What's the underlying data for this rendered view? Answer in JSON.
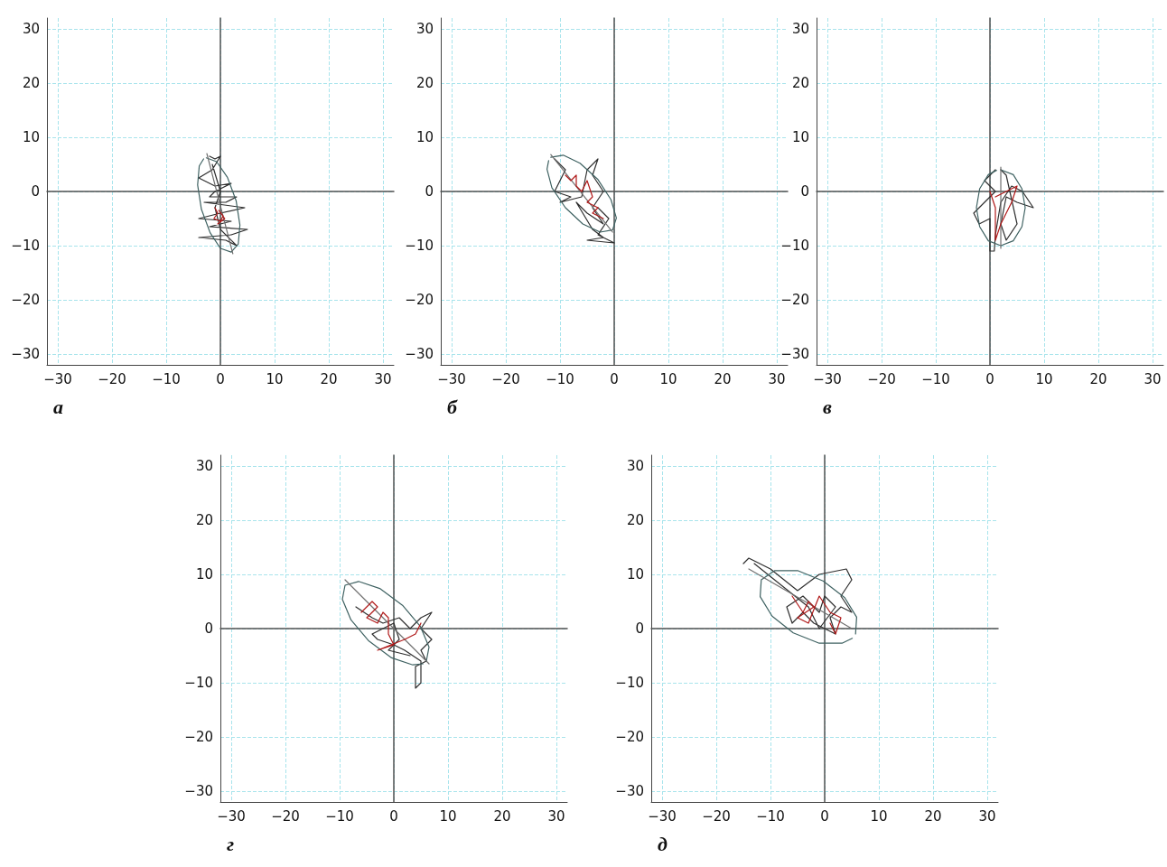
{
  "chart_data": [
    {
      "type": "line",
      "title": "а",
      "xlim": [
        -32,
        32
      ],
      "ylim": [
        -32,
        32
      ],
      "xticks": [
        -30,
        -20,
        -10,
        0,
        10,
        20,
        30
      ],
      "yticks": [
        -30,
        -20,
        -10,
        0,
        10,
        20,
        30
      ],
      "grid": true,
      "marker": "none",
      "line_style": "solid",
      "series": [
        {
          "color": "#2e2e2e",
          "x": [
            -2,
            -1,
            0,
            -1.5,
            -4,
            -1,
            2,
            -1,
            -2,
            3,
            1,
            -3,
            4.5,
            0,
            -4,
            2,
            -2,
            5,
            2,
            -4,
            1,
            3,
            0,
            -1,
            0,
            -1.5
          ],
          "values": [
            6.5,
            6,
            6.5,
            4,
            2.5,
            1,
            1.5,
            0,
            -1,
            -1,
            -2,
            -2,
            -3,
            -4,
            -5,
            -5.5,
            -6.5,
            -7,
            -8,
            -8.5,
            -9,
            -10,
            -7,
            -3,
            0,
            5
          ]
        },
        {
          "color": "#3f6262",
          "x": [
            -2.6,
            -0.7,
            1.3,
            2.9,
            3.6,
            3.3,
            2,
            0,
            -1.9,
            -3.5,
            -4.2,
            -3.9,
            -3.1
          ],
          "values": [
            6.2,
            5.5,
            2.6,
            -1.7,
            -6.2,
            -9.7,
            -11.2,
            -10.5,
            -7.6,
            -3.3,
            1.2,
            4.7,
            6.0
          ]
        },
        {
          "color": "#707070",
          "x": [
            -2.5,
            2.3
          ],
          "values": [
            7,
            -11.5
          ]
        },
        {
          "color": "#b01818",
          "x": [
            -1,
            -0.5,
            -1.2,
            0,
            0.5,
            -0.3,
            0.8,
            -0.5
          ],
          "values": [
            -3,
            -4,
            -5,
            -5.5,
            -4.5,
            -3.5,
            -5,
            -6
          ]
        }
      ]
    },
    {
      "type": "line",
      "title": "б",
      "xlim": [
        -32,
        32
      ],
      "ylim": [
        -32,
        32
      ],
      "xticks": [
        -30,
        -20,
        -10,
        0,
        10,
        20,
        30
      ],
      "yticks": [
        -30,
        -20,
        -10,
        0,
        10,
        20,
        30
      ],
      "grid": true,
      "marker": "none",
      "line_style": "solid",
      "series": [
        {
          "color": "#2e2e2e",
          "x": [
            -11,
            -9,
            -11,
            -8,
            -10,
            -6,
            -5,
            -3,
            -4,
            -2,
            -4,
            -2,
            -5,
            -7,
            -4,
            -2,
            -5,
            0,
            -3,
            -1,
            -3
          ],
          "values": [
            6,
            4,
            0,
            -1,
            -2,
            -1,
            4,
            6,
            3,
            0,
            -3,
            -6,
            -4,
            -2,
            -7,
            -8.5,
            -9,
            -9.5,
            -8,
            -5,
            -3
          ]
        },
        {
          "color": "#3f6262",
          "x": [
            -11.7,
            -9.4,
            -6.3,
            -3,
            -0.6,
            0.4,
            -0.3,
            -2.6,
            -5.8,
            -9,
            -11.5,
            -12.4,
            -12.1
          ],
          "values": [
            6.3,
            6.7,
            5.2,
            2.2,
            -1.5,
            -4.9,
            -7.1,
            -7.5,
            -6,
            -3,
            0.7,
            4.1,
            5.7
          ]
        },
        {
          "color": "#707070",
          "x": [
            -11.7,
            -0.3
          ],
          "values": [
            6.8,
            -7.5
          ]
        },
        {
          "color": "#b01818",
          "x": [
            -9,
            -8,
            -7,
            -7,
            -6,
            -5,
            -4,
            -5,
            -3,
            -4,
            -2
          ],
          "values": [
            3,
            2,
            3,
            1,
            0,
            2,
            -1,
            -2,
            -3,
            -4,
            -5
          ]
        }
      ]
    },
    {
      "type": "line",
      "title": "в",
      "xlim": [
        -32,
        32
      ],
      "ylim": [
        -32,
        32
      ],
      "xticks": [
        -30,
        -20,
        -10,
        0,
        10,
        20,
        30
      ],
      "yticks": [
        -30,
        -20,
        -10,
        0,
        10,
        20,
        30
      ],
      "grid": true,
      "marker": "none",
      "line_style": "solid",
      "series": [
        {
          "color": "#2e2e2e",
          "x": [
            1,
            -1,
            1,
            -1,
            -3,
            -2,
            0,
            0,
            0.8,
            1,
            2,
            4,
            6,
            8,
            5,
            3,
            2,
            3,
            5,
            3,
            2
          ],
          "values": [
            4,
            2,
            0,
            -2,
            -4,
            -6,
            -5,
            -11,
            -11,
            -8,
            -2,
            1,
            0,
            -3,
            -2,
            -1,
            -6,
            -9,
            -6,
            3,
            4
          ]
        },
        {
          "color": "#3f6262",
          "x": [
            2,
            4.3,
            5.9,
            6.5,
            5.9,
            4.3,
            2,
            -0.3,
            -1.9,
            -2.5,
            -1.9,
            -0.3,
            1.2
          ],
          "values": [
            4,
            3.1,
            0.5,
            -3,
            -6.5,
            -9.1,
            -10,
            -9.1,
            -6.5,
            -3,
            0.5,
            3.1,
            3.9
          ]
        },
        {
          "color": "#707070",
          "x": [
            2,
            2
          ],
          "values": [
            4.5,
            -10.5
          ]
        },
        {
          "color": "#b01818",
          "x": [
            1,
            3,
            5,
            4,
            3,
            2,
            1,
            1,
            0
          ],
          "values": [
            -1,
            0,
            1,
            -2,
            -4,
            -6,
            -9,
            -3,
            0
          ]
        }
      ]
    },
    {
      "type": "line",
      "title": "г",
      "xlim": [
        -32,
        32
      ],
      "ylim": [
        -32,
        32
      ],
      "xticks": [
        -30,
        -20,
        -10,
        0,
        10,
        20,
        30
      ],
      "yticks": [
        -30,
        -20,
        -10,
        0,
        10,
        20,
        30
      ],
      "grid": true,
      "marker": "none",
      "line_style": "solid",
      "series": [
        {
          "color": "#2e2e2e",
          "x": [
            -7,
            -4,
            -2,
            1,
            3,
            5,
            7,
            5,
            7,
            5,
            6,
            4,
            4,
            5,
            5,
            2,
            0,
            -3,
            -4,
            -2,
            0,
            1,
            -1,
            3
          ],
          "values": [
            4,
            2,
            1,
            2,
            0,
            2,
            3,
            0,
            -2,
            -4,
            -6,
            -7,
            -11,
            -10,
            -6,
            -4,
            -3,
            -2,
            -1,
            0,
            1,
            -2,
            -4,
            -5
          ]
        },
        {
          "color": "#3f6262",
          "x": [
            6,
            6.5,
            4.9,
            1.6,
            -2.6,
            -6.5,
            -9,
            -9.5,
            -7.9,
            -4.6,
            -0.4,
            3.5,
            5.4
          ],
          "values": [
            -6,
            -3.4,
            0.4,
            4.3,
            7.4,
            8.7,
            8,
            5.4,
            1.6,
            -2.3,
            -5.4,
            -6.7,
            -6.5
          ]
        },
        {
          "color": "#707070",
          "x": [
            -9,
            6.5
          ],
          "values": [
            9,
            -6.5
          ]
        },
        {
          "color": "#b01818",
          "x": [
            -6,
            -4,
            -3,
            -5,
            -3,
            -2,
            -1,
            -1,
            0,
            -3,
            2,
            4,
            5
          ],
          "values": [
            3,
            5,
            4,
            2,
            1,
            3,
            2,
            -1,
            -3,
            -4,
            -2,
            -1,
            1
          ]
        }
      ]
    },
    {
      "type": "line",
      "title": "д",
      "xlim": [
        -32,
        32
      ],
      "ylim": [
        -32,
        32
      ],
      "xticks": [
        -30,
        -20,
        -10,
        0,
        10,
        20,
        30
      ],
      "yticks": [
        -30,
        -20,
        -10,
        0,
        10,
        20,
        30
      ],
      "grid": true,
      "marker": "none",
      "line_style": "solid",
      "series": [
        {
          "color": "#2e2e2e",
          "x": [
            -15,
            -14,
            -10,
            -5,
            -1,
            4,
            5,
            3,
            5,
            3,
            1,
            2,
            -2,
            -4,
            -6,
            -7,
            -4,
            -1,
            0,
            2,
            -1,
            -3,
            -13
          ],
          "values": [
            12,
            13,
            11,
            7,
            10,
            11,
            9,
            6,
            3,
            4,
            2,
            -1,
            1,
            3,
            1,
            4,
            6,
            3,
            6,
            4,
            0,
            4,
            12
          ]
        },
        {
          "color": "#3f6262",
          "x": [
            5.7,
            5.9,
            3.7,
            -0.3,
            -5,
            -9.2,
            -11.7,
            -11.9,
            -9.7,
            -5.8,
            -1,
            3.2,
            5.1
          ],
          "values": [
            -1,
            2.1,
            5.7,
            8.8,
            10.7,
            10.7,
            9,
            5.9,
            2.3,
            -0.8,
            -2.7,
            -2.7,
            -1.8
          ]
        },
        {
          "color": "#707070",
          "x": [
            -14,
            5
          ],
          "values": [
            11,
            0
          ]
        },
        {
          "color": "#b01818",
          "x": [
            -6,
            -4,
            -3,
            -2,
            -5,
            -3,
            -1,
            1,
            3,
            2,
            1
          ],
          "values": [
            6,
            3,
            5,
            4,
            2,
            1,
            6,
            3,
            2,
            -1,
            1
          ]
        }
      ]
    }
  ]
}
